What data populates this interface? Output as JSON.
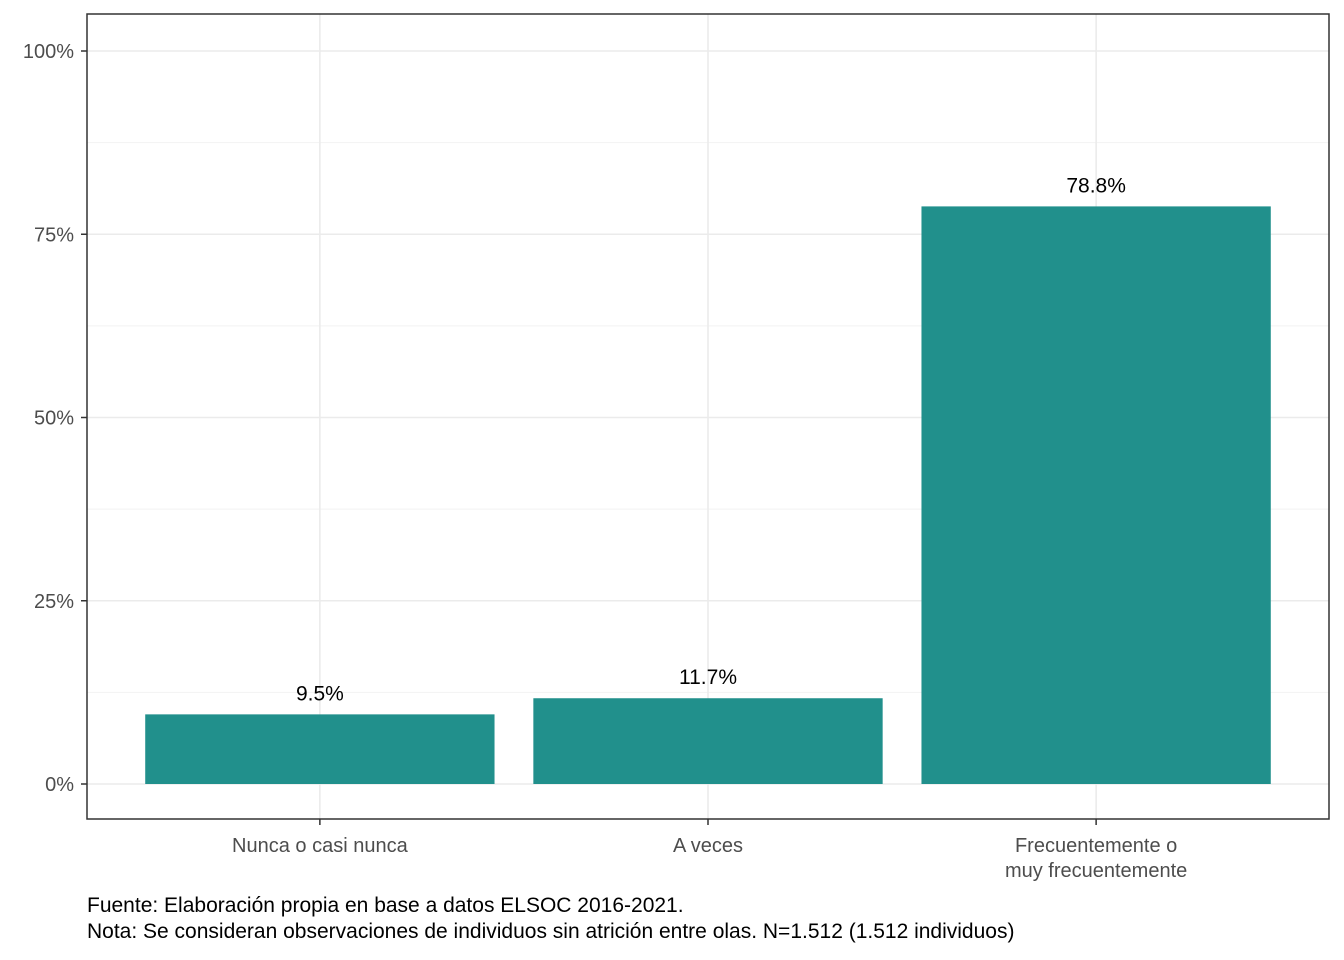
{
  "chart_data": {
    "type": "bar",
    "categories": [
      [
        "Nunca o casi nunca"
      ],
      [
        "A veces"
      ],
      [
        "Frecuentemente o",
        "muy frecuentemente"
      ]
    ],
    "values": [
      9.5,
      11.7,
      78.8
    ],
    "data_labels": [
      "9.5%",
      "11.7%",
      "78.8%"
    ],
    "ylim": [
      0,
      100
    ],
    "yticks": [
      0,
      25,
      50,
      75,
      100
    ],
    "ytick_labels": [
      "0%",
      "25%",
      "50%",
      "75%",
      "100%"
    ],
    "bar_color": "#21908C",
    "grid": true,
    "title": "",
    "xlabel": "",
    "ylabel": ""
  },
  "caption": {
    "source": "Fuente: Elaboración propia en base a datos ELSOC 2016-2021.",
    "note": "Nota: Se consideran observaciones de individuos sin atrición entre olas. N=1.512 (1.512 individuos)"
  }
}
